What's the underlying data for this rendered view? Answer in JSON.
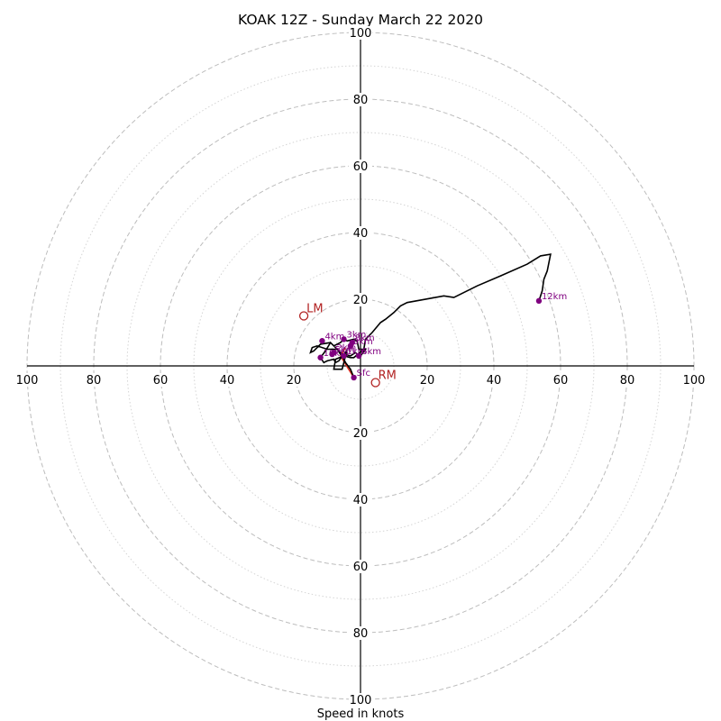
{
  "chart_data": {
    "type": "hodograph",
    "title": "KOAK 12Z - Sunday March 22 2020",
    "xlabel": "Speed in knots",
    "rings_major": [
      20,
      40,
      60,
      80,
      100
    ],
    "rings_minor": [
      10,
      30,
      50,
      70,
      90
    ],
    "ticks": [
      "20",
      "40",
      "60",
      "80",
      "100"
    ],
    "xlim": [
      -100,
      100
    ],
    "ylim": [
      -100,
      100
    ],
    "trace": [
      [
        -2,
        -3.5
      ],
      [
        -3,
        -1
      ],
      [
        -4.5,
        1
      ],
      [
        -5,
        2
      ],
      [
        -6,
        3.5
      ],
      [
        -7,
        5
      ],
      [
        -10,
        5
      ],
      [
        -13,
        6
      ],
      [
        -14.5,
        5.5
      ],
      [
        -15,
        4
      ],
      [
        -14,
        4.5
      ],
      [
        -12,
        6.5
      ],
      [
        -9,
        7
      ],
      [
        -8,
        6
      ],
      [
        -6,
        7
      ],
      [
        -5,
        8
      ],
      [
        -4,
        7.5
      ],
      [
        -2,
        8
      ],
      [
        -1,
        7.5
      ],
      [
        -0.5,
        5
      ],
      [
        0.5,
        5
      ],
      [
        1.5,
        5
      ],
      [
        0,
        3
      ],
      [
        -0.5,
        3
      ],
      [
        -1.5,
        4
      ],
      [
        -3,
        3
      ],
      [
        -5,
        3.5
      ],
      [
        -6.5,
        1.5
      ],
      [
        -7.5,
        1
      ],
      [
        -8,
        2
      ],
      [
        -10,
        1.5
      ],
      [
        -11,
        1
      ],
      [
        -12,
        2.5
      ],
      [
        -10.5,
        4.5
      ],
      [
        -9,
        7
      ],
      [
        -5,
        3
      ],
      [
        -4,
        5
      ],
      [
        -5,
        1
      ],
      [
        -5.5,
        -1
      ],
      [
        -8,
        -1
      ],
      [
        -7.5,
        2
      ],
      [
        -5,
        3
      ],
      [
        -3,
        2.5
      ],
      [
        -2,
        2.5
      ],
      [
        1,
        5
      ],
      [
        1.5,
        8
      ],
      [
        3.5,
        10
      ],
      [
        6,
        13
      ],
      [
        7.5,
        14
      ],
      [
        10,
        16
      ],
      [
        12,
        18
      ],
      [
        14,
        19
      ],
      [
        25,
        21
      ],
      [
        28,
        20.5
      ],
      [
        35,
        24
      ],
      [
        42,
        27
      ],
      [
        50,
        30.5
      ],
      [
        54,
        33
      ],
      [
        57,
        33.5
      ],
      [
        56,
        28.5
      ],
      [
        55,
        26
      ],
      [
        54.5,
        22.5
      ],
      [
        53.5,
        19.5
      ]
    ],
    "height_markers": [
      {
        "label": "Sfc",
        "u": -2,
        "v": -3.5
      },
      {
        "label": "1km",
        "u": -5,
        "v": 3
      },
      {
        "label": "2km",
        "u": -8,
        "v": 4
      },
      {
        "label": "3km",
        "u": -5,
        "v": 8
      },
      {
        "label": "4km",
        "u": -11.5,
        "v": 7.5
      },
      {
        "label": "5km",
        "u": -8.5,
        "v": 3.5
      },
      {
        "label": "6km",
        "u": -0.5,
        "v": 3
      },
      {
        "label": "8km",
        "u": -2.5,
        "v": 7
      },
      {
        "label": "9km",
        "u": -3,
        "v": 6
      },
      {
        "label": "10km",
        "u": -12,
        "v": 2.5
      },
      {
        "label": "12km",
        "u": 53.5,
        "v": 19.5
      }
    ],
    "storm_motion": [
      {
        "label": "LM",
        "u": -17,
        "v": 15
      },
      {
        "label": "RM",
        "u": 4.5,
        "v": -5
      }
    ],
    "shear_vectors": [
      {
        "from": [
          -2,
          -3.5
        ],
        "to": [
          -6,
          3
        ]
      },
      {
        "from": [
          -6,
          3
        ],
        "to": [
          -4.5,
          5.5
        ]
      }
    ]
  }
}
